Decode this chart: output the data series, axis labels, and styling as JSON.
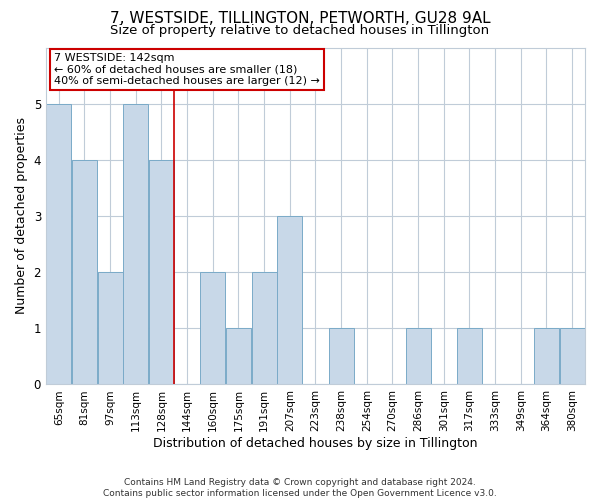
{
  "title": "7, WESTSIDE, TILLINGTON, PETWORTH, GU28 9AL",
  "subtitle": "Size of property relative to detached houses in Tillington",
  "xlabel": "Distribution of detached houses by size in Tillington",
  "ylabel": "Number of detached properties",
  "categories": [
    "65sqm",
    "81sqm",
    "97sqm",
    "113sqm",
    "128sqm",
    "144sqm",
    "160sqm",
    "175sqm",
    "191sqm",
    "207sqm",
    "223sqm",
    "238sqm",
    "254sqm",
    "270sqm",
    "286sqm",
    "301sqm",
    "317sqm",
    "333sqm",
    "349sqm",
    "364sqm",
    "380sqm"
  ],
  "values": [
    5,
    4,
    2,
    5,
    4,
    0,
    2,
    1,
    2,
    3,
    0,
    1,
    0,
    0,
    1,
    0,
    1,
    0,
    0,
    1,
    1
  ],
  "bar_color": "#c8d8e8",
  "bar_edge_color": "#7aaac8",
  "marker_line_color": "#cc0000",
  "annotation_line1": "7 WESTSIDE: 142sqm",
  "annotation_line2": "← 60% of detached houses are smaller (18)",
  "annotation_line3": "40% of semi-detached houses are larger (12) →",
  "annotation_box_edge_color": "#cc0000",
  "annotation_box_face_color": "#ffffff",
  "ylim": [
    0,
    6
  ],
  "yticks": [
    0,
    1,
    2,
    3,
    4,
    5,
    6
  ],
  "footer_line1": "Contains HM Land Registry data © Crown copyright and database right 2024.",
  "footer_line2": "Contains public sector information licensed under the Open Government Licence v3.0.",
  "background_color": "#ffffff",
  "grid_color": "#c0ccd8",
  "title_fontsize": 11,
  "subtitle_fontsize": 9.5,
  "axis_label_fontsize": 9,
  "tick_fontsize": 7.5,
  "footer_fontsize": 6.5,
  "annotation_fontsize": 8
}
